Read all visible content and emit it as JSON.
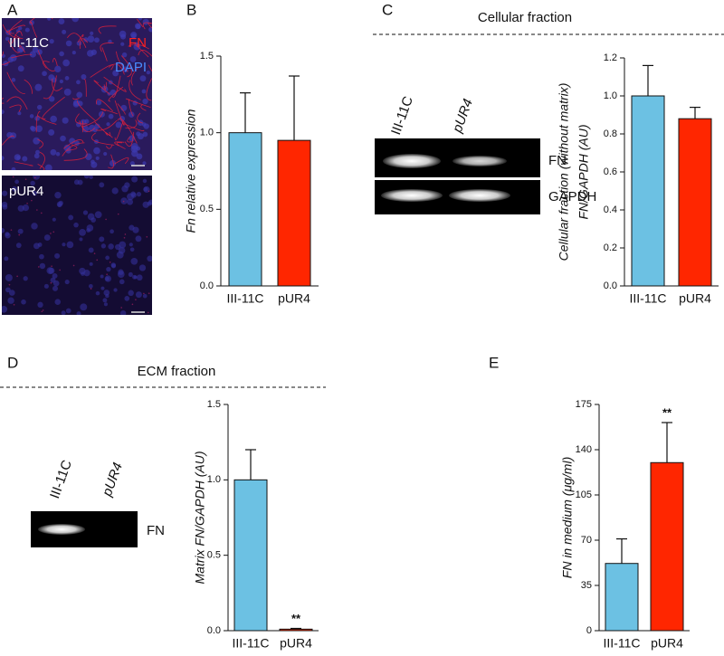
{
  "figure": {
    "panels": [
      "A",
      "B",
      "C",
      "D",
      "E"
    ],
    "micrograph": {
      "top_label": "III-11C",
      "fn": "FN",
      "dapi": "DAPI",
      "bottom_label": "pUR4"
    },
    "cellular": {
      "title": "Cellular fraction",
      "lanes": [
        "III-11C",
        "pUR4"
      ],
      "bands": [
        "FN",
        "GAPDH"
      ]
    },
    "ecm": {
      "title": "ECM fraction",
      "lanes": [
        "III-11C",
        "pUR4"
      ],
      "bands": [
        "FN"
      ]
    }
  },
  "chart_data": [
    {
      "type": "bar",
      "categories": [
        "III-11C",
        "pUR4"
      ],
      "values": [
        1.0,
        0.95
      ],
      "errors": [
        0.26,
        0.42
      ],
      "colors": [
        "#6cc1e3",
        "#ff2600"
      ],
      "annotations": [
        null,
        null
      ],
      "ylabel": [
        "Fn relative expression"
      ],
      "ylim": [
        0,
        1.5
      ],
      "yticks": [
        {
          "value": 0,
          "label": "0.0"
        },
        0.5,
        {
          "value": 1,
          "label": "1.0"
        },
        1.5
      ]
    },
    {
      "type": "bar",
      "categories": [
        "III-11C",
        "pUR4"
      ],
      "values": [
        1.0,
        0.88
      ],
      "errors": [
        0.16,
        0.06
      ],
      "colors": [
        "#6cc1e3",
        "#ff2600"
      ],
      "annotations": [
        null,
        null
      ],
      "ylabel": [
        "Cellular fraction (without matrix)",
        "FN/GAPDH  (AU)"
      ],
      "ylim": [
        0,
        1.2
      ],
      "yticks": [
        {
          "value": 0,
          "label": "0.0"
        },
        0.2,
        0.4,
        0.6,
        0.8,
        {
          "value": 1,
          "label": "1.0"
        },
        1.2
      ]
    },
    {
      "type": "bar",
      "categories": [
        "III-11C",
        "pUR4"
      ],
      "values": [
        1.0,
        0.01
      ],
      "errors": [
        0.2,
        0.005
      ],
      "colors": [
        "#6cc1e3",
        "#ff2600"
      ],
      "annotations": [
        null,
        "**"
      ],
      "ylabel": [
        "Matrix FN/GAPDH (AU)"
      ],
      "ylim": [
        0,
        1.5
      ],
      "yticks": [
        {
          "value": 0,
          "label": "0.0"
        },
        0.5,
        {
          "value": 1,
          "label": "1.0"
        },
        1.5
      ]
    },
    {
      "type": "bar",
      "categories": [
        "III-11C",
        "pUR4"
      ],
      "values": [
        52,
        130
      ],
      "errors": [
        19,
        31
      ],
      "colors": [
        "#6cc1e3",
        "#ff2600"
      ],
      "annotations": [
        null,
        "**"
      ],
      "ylabel": [
        "FN in medium (μg/ml)"
      ],
      "ylim": [
        0,
        175
      ],
      "yticks": [
        0,
        35,
        70,
        105,
        140,
        175
      ]
    }
  ]
}
